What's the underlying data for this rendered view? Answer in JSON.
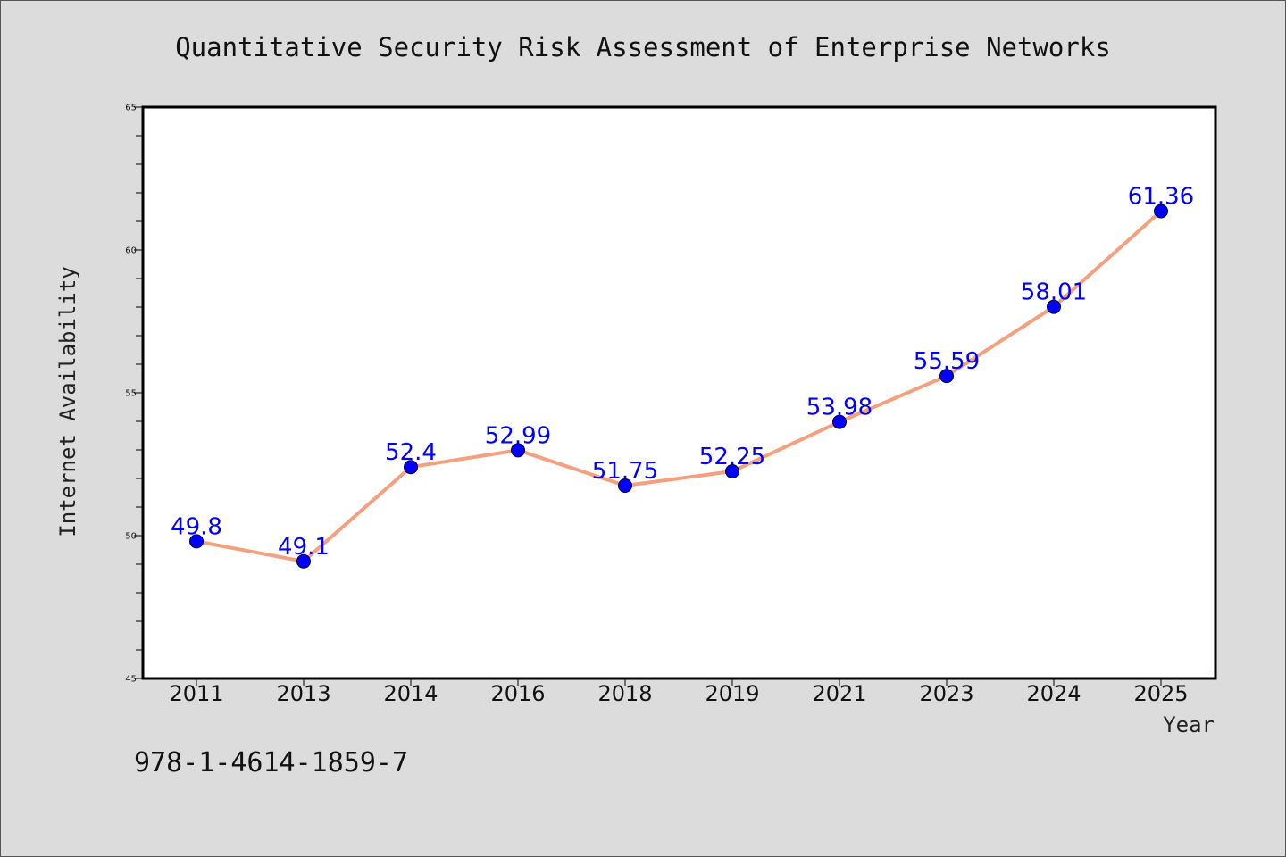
{
  "chart_data": {
    "type": "line",
    "title": "Quantitative Security Risk Assessment of Enterprise Networks",
    "xlabel": "Year",
    "ylabel": "Internet Availability",
    "categories": [
      "2011",
      "2013",
      "2014",
      "2016",
      "2018",
      "2019",
      "2021",
      "2023",
      "2024",
      "2025"
    ],
    "series": [
      {
        "values": [
          49.8,
          49.1,
          52.4,
          52.99,
          51.75,
          52.25,
          53.98,
          55.59,
          58.01,
          61.36
        ],
        "data_labels": [
          "49.8",
          "49.1",
          "52.4",
          "52.99",
          "51.75",
          "52.25",
          "53.98",
          "55.59",
          "58.01",
          "61.36"
        ],
        "line_color": "#f4a07e",
        "marker_color": "#0000ff"
      }
    ],
    "ylim": [
      45,
      65
    ],
    "yticks": [
      45,
      50,
      55,
      60,
      65
    ],
    "yticks_minor_step": 1,
    "grid": false,
    "legend": "none"
  },
  "footer": {
    "isbn": "978-1-4614-1859-7"
  },
  "colors": {
    "background": "#dcdcdc",
    "plot_area": "#ffffff",
    "line": "#f4a07e",
    "marker": "#0000ff",
    "data_label": "#0000ff"
  }
}
